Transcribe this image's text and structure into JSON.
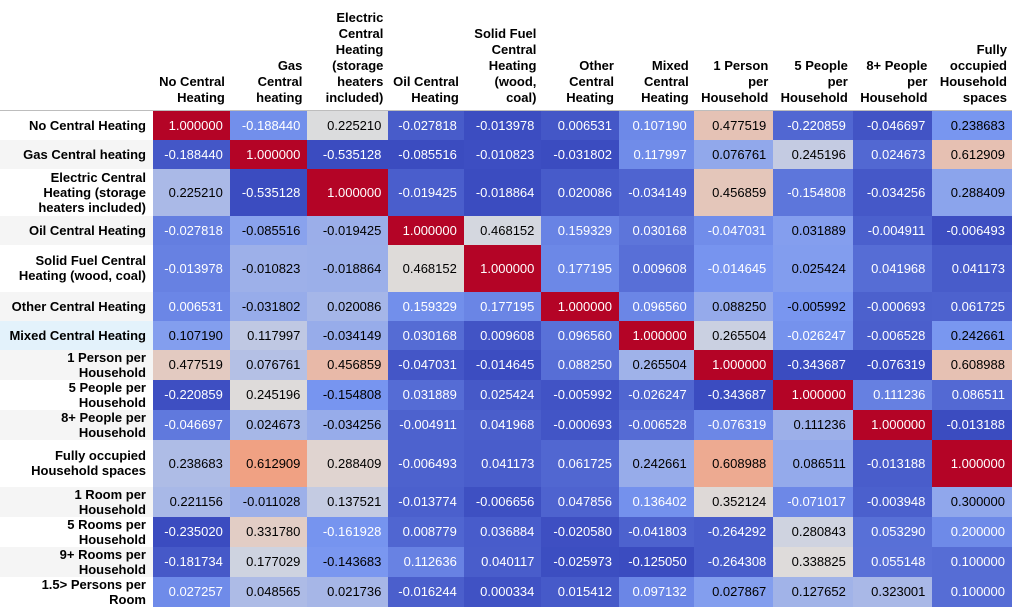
{
  "columns": [
    "No Central Heating",
    "Gas Central heating",
    "Electric Central Heating (storage heaters included)",
    "Oil Central Heating",
    "Solid Fuel Central Heating (wood, coal)",
    "Other Central Heating",
    "Mixed Central Heating",
    "1 Person per Household",
    "5 People per Household",
    "8+ People per Household",
    "Fully occupied Household spaces"
  ],
  "rows": [
    {
      "label": "No Central Heating",
      "values": [
        "1.000000",
        "-0.188440",
        "0.225210",
        "-0.027818",
        "-0.013978",
        "0.006531",
        "0.107190",
        "0.477519",
        "-0.220859",
        "-0.046697",
        "0.238683"
      ]
    },
    {
      "label": "Gas Central heating",
      "values": [
        "-0.188440",
        "1.000000",
        "-0.535128",
        "-0.085516",
        "-0.010823",
        "-0.031802",
        "0.117997",
        "0.076761",
        "0.245196",
        "0.024673",
        "0.612909"
      ]
    },
    {
      "label": "Electric Central Heating (storage heaters included)",
      "values": [
        "0.225210",
        "-0.535128",
        "1.000000",
        "-0.019425",
        "-0.018864",
        "0.020086",
        "-0.034149",
        "0.456859",
        "-0.154808",
        "-0.034256",
        "0.288409"
      ]
    },
    {
      "label": "Oil Central Heating",
      "values": [
        "-0.027818",
        "-0.085516",
        "-0.019425",
        "1.000000",
        "0.468152",
        "0.159329",
        "0.030168",
        "-0.047031",
        "0.031889",
        "-0.004911",
        "-0.006493"
      ]
    },
    {
      "label": "Solid Fuel Central Heating (wood, coal)",
      "values": [
        "-0.013978",
        "-0.010823",
        "-0.018864",
        "0.468152",
        "1.000000",
        "0.177195",
        "0.009608",
        "-0.014645",
        "0.025424",
        "0.041968",
        "0.041173"
      ]
    },
    {
      "label": "Other Central Heating",
      "values": [
        "0.006531",
        "-0.031802",
        "0.020086",
        "0.159329",
        "0.177195",
        "1.000000",
        "0.096560",
        "0.088250",
        "-0.005992",
        "-0.000693",
        "0.061725"
      ]
    },
    {
      "label": "Mixed Central Heating",
      "values": [
        "0.107190",
        "0.117997",
        "-0.034149",
        "0.030168",
        "0.009608",
        "0.096560",
        "1.000000",
        "0.265504",
        "-0.026247",
        "-0.006528",
        "0.242661"
      ]
    },
    {
      "label": "1 Person per Household",
      "values": [
        "0.477519",
        "0.076761",
        "0.456859",
        "-0.047031",
        "-0.014645",
        "0.088250",
        "0.265504",
        "1.000000",
        "-0.343687",
        "-0.076319",
        "0.608988"
      ]
    },
    {
      "label": "5 People per Household",
      "values": [
        "-0.220859",
        "0.245196",
        "-0.154808",
        "0.031889",
        "0.025424",
        "-0.005992",
        "-0.026247",
        "-0.343687",
        "1.000000",
        "0.111236",
        "0.086511"
      ]
    },
    {
      "label": "8+ People per Household",
      "values": [
        "-0.046697",
        "0.024673",
        "-0.034256",
        "-0.004911",
        "0.041968",
        "-0.000693",
        "-0.006528",
        "-0.076319",
        "0.111236",
        "1.000000",
        "-0.013188"
      ]
    },
    {
      "label": "Fully occupied Household spaces",
      "values": [
        "0.238683",
        "0.612909",
        "0.288409",
        "-0.006493",
        "0.041173",
        "0.061725",
        "0.242661",
        "0.608988",
        "0.086511",
        "-0.013188",
        "1.000000"
      ]
    },
    {
      "label": "1 Room per Household",
      "values": [
        "0.221156",
        "-0.011028",
        "0.137521",
        "-0.013774",
        "-0.006656",
        "0.047856",
        "0.136402",
        "0.352124",
        "-0.071017",
        "-0.003948",
        "0.300000"
      ]
    },
    {
      "label": "5 Rooms per Household",
      "values": [
        "-0.235020",
        "0.331780",
        "-0.161928",
        "0.008779",
        "0.036884",
        "-0.020580",
        "-0.041803",
        "-0.264292",
        "0.280843",
        "0.053290",
        "0.200000"
      ]
    },
    {
      "label": "9+ Rooms per Household",
      "values": [
        "-0.181734",
        "0.177029",
        "-0.143683",
        "0.112636",
        "0.040117",
        "-0.025973",
        "-0.125050",
        "-0.264308",
        "0.338825",
        "0.055148",
        "0.100000"
      ]
    },
    {
      "label": "1.5> Persons per Room",
      "values": [
        "0.027257",
        "0.048565",
        "0.021736",
        "-0.016244",
        "0.000334",
        "0.015412",
        "0.097132",
        "0.027867",
        "0.127652",
        "0.323001",
        "0.100000"
      ]
    }
  ],
  "colors": {
    "min": "#3b4cc0",
    "mid": "#dddddd",
    "max": "#b40426",
    "row_header_zebra": "#f5f5f5",
    "row_header_hover": "#e3f2fb"
  }
}
